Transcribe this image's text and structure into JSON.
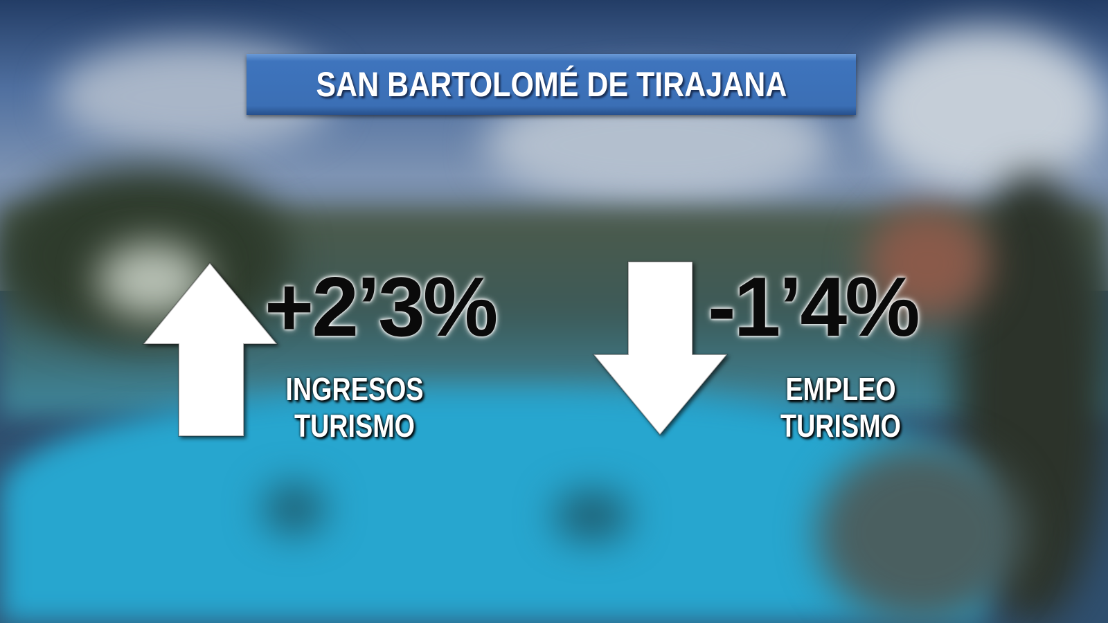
{
  "title": "SAN BARTOLOMÉ DE TIRAJANA",
  "stats": [
    {
      "value": "+2’3%",
      "label_line1": "INGRESOS",
      "label_line2": "TURISMO",
      "direction": "up",
      "icon": "arrow-up-icon"
    },
    {
      "value": "-1’4%",
      "label_line1": "EMPLEO",
      "label_line2": "TURISMO",
      "direction": "down",
      "icon": "arrow-down-icon"
    }
  ],
  "colors": {
    "title_box": "#3e74bd",
    "pool": "#27a6cf",
    "sky": "#4f6f9f"
  }
}
